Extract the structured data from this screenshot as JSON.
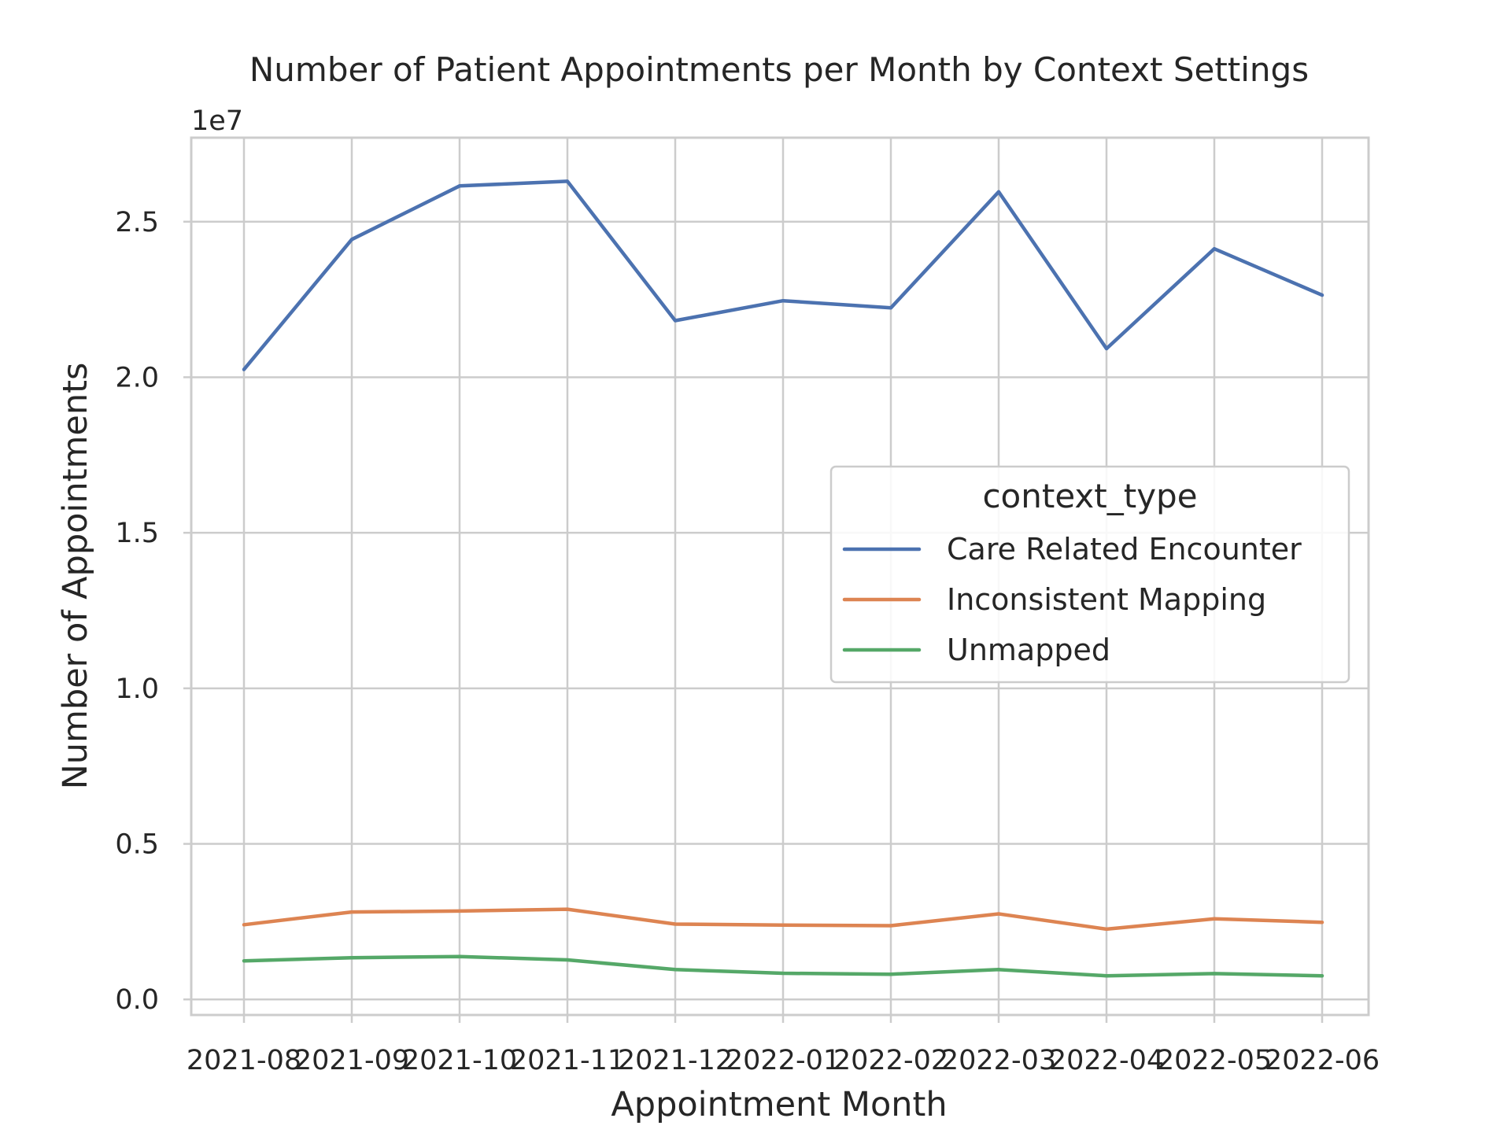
{
  "chart_data": {
    "type": "line",
    "title": "Number of Patient Appointments per Month by Context Settings",
    "xlabel": "Appointment Month",
    "ylabel": "Number of Appointments",
    "y_offset_label": "1e7",
    "x": [
      "2021-08",
      "2021-09",
      "2021-10",
      "2021-11",
      "2021-12",
      "2022-01",
      "2022-02",
      "2022-03",
      "2022-04",
      "2022-05",
      "2022-06"
    ],
    "y_ticks": [
      0.0,
      0.5,
      1.0,
      1.5,
      2.0,
      2.5
    ],
    "y_tick_labels": [
      "0.0",
      "0.5",
      "1.0",
      "1.5",
      "2.0",
      "2.5"
    ],
    "ylim": [
      -0.05,
      2.77
    ],
    "y_unit_multiplier": 10000000,
    "grid": true,
    "legend": {
      "title": "context_type",
      "placement": "center-right"
    },
    "series": [
      {
        "name": "Care Related Encounter",
        "color": "#4c72b0",
        "values": [
          2.025,
          2.443,
          2.615,
          2.63,
          2.182,
          2.246,
          2.223,
          2.596,
          2.092,
          2.413,
          2.264
        ]
      },
      {
        "name": "Inconsistent Mapping",
        "color": "#dd8452",
        "values": [
          0.24,
          0.281,
          0.284,
          0.29,
          0.242,
          0.239,
          0.237,
          0.275,
          0.226,
          0.259,
          0.248
        ]
      },
      {
        "name": "Unmapped",
        "color": "#55a868",
        "values": [
          0.124,
          0.134,
          0.138,
          0.127,
          0.096,
          0.084,
          0.081,
          0.096,
          0.076,
          0.083,
          0.076
        ]
      }
    ]
  }
}
